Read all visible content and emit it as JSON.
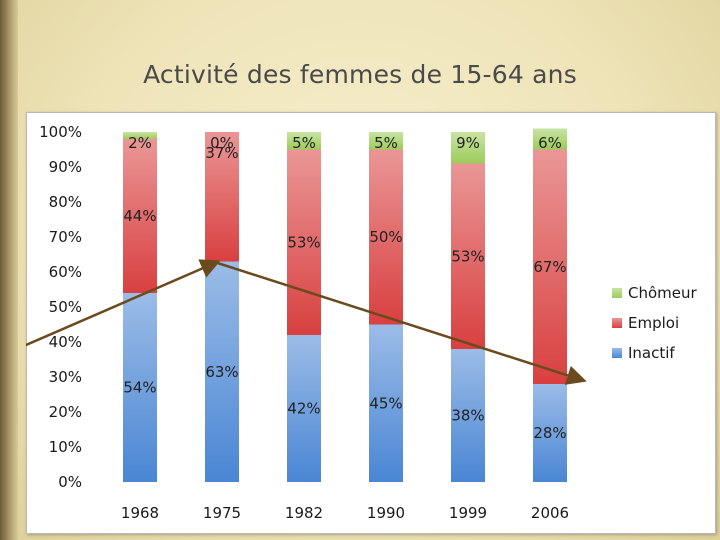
{
  "slide": {
    "title": "Activité des femmes de 15-64 ans"
  },
  "chart_data": {
    "type": "bar",
    "stacked": true,
    "title": "Activité des femmes de 15-64 ans",
    "xlabel": "",
    "ylabel": "",
    "ylim": [
      0,
      100
    ],
    "y_ticks": [
      "0%",
      "10%",
      "20%",
      "30%",
      "40%",
      "50%",
      "60%",
      "70%",
      "80%",
      "90%",
      "100%"
    ],
    "categories": [
      "1968",
      "1975",
      "1982",
      "1990",
      "1999",
      "2006"
    ],
    "series": [
      {
        "name": "Inactif",
        "values": [
          54,
          63,
          42,
          45,
          38,
          28
        ],
        "labels": [
          "54%",
          "63%",
          "42%",
          "45%",
          "38%",
          "28%"
        ],
        "color": "#4a86d4"
      },
      {
        "name": "Emploi",
        "values": [
          44,
          37,
          53,
          50,
          53,
          67
        ],
        "labels": [
          "44%",
          "37%",
          "53%",
          "50%",
          "53%",
          "67%"
        ],
        "color": "#d94040"
      },
      {
        "name": "Chômeur",
        "values": [
          2,
          0,
          5,
          5,
          9,
          6
        ],
        "labels": [
          "2%",
          "0%",
          "5%",
          "5%",
          "9%",
          "6%"
        ],
        "color": "#9ccc5a"
      }
    ],
    "legend_position": "right",
    "legend_order": [
      "Chômeur",
      "Emploi",
      "Inactif"
    ],
    "grid": false,
    "trend_arrow_color": "#6b4a1e"
  }
}
